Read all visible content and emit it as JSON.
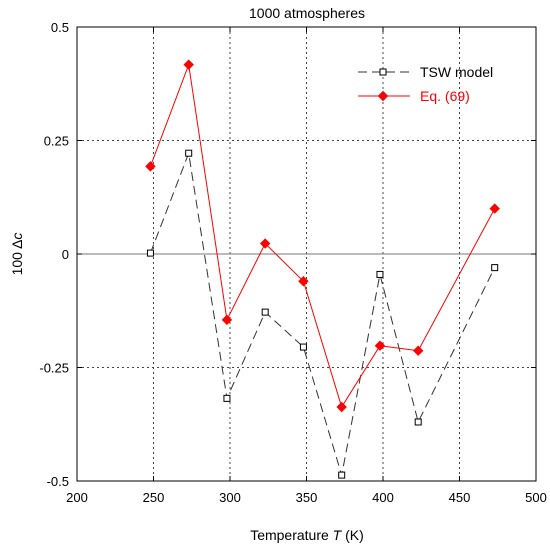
{
  "chart_data": {
    "type": "line",
    "title": "1000 atmospheres",
    "xlabel": "Temperature T (K)",
    "ylabel": "100 Δc",
    "xlim": [
      200,
      500
    ],
    "ylim": [
      -0.5,
      0.5
    ],
    "xticks": [
      200,
      250,
      300,
      350,
      400,
      450,
      500
    ],
    "yticks": [
      -0.5,
      -0.25,
      0,
      0.25,
      0.5
    ],
    "xtick_labels": [
      "200",
      "250",
      "300",
      "350",
      "400",
      "450",
      "500"
    ],
    "ytick_labels": [
      "-0.5",
      "-0.25",
      "0",
      "0.25",
      "0.5"
    ],
    "grid": true,
    "legend_position": "top-right",
    "series": [
      {
        "name": "TSW model",
        "color": "#000000",
        "marker": "open-square",
        "line": "dashed",
        "x": [
          248,
          273,
          298,
          323,
          348,
          373,
          398,
          423,
          473
        ],
        "y": [
          0.002,
          0.222,
          -0.318,
          -0.128,
          -0.205,
          -0.487,
          -0.045,
          -0.37,
          -0.03
        ]
      },
      {
        "name": "Eq. (69)",
        "color": "#ff0000",
        "marker": "filled-diamond",
        "line": "solid",
        "x": [
          248,
          273,
          298,
          323,
          348,
          373,
          398,
          423,
          473
        ],
        "y": [
          0.193,
          0.417,
          -0.145,
          0.023,
          -0.06,
          -0.337,
          -0.202,
          -0.213,
          0.1
        ]
      }
    ]
  }
}
